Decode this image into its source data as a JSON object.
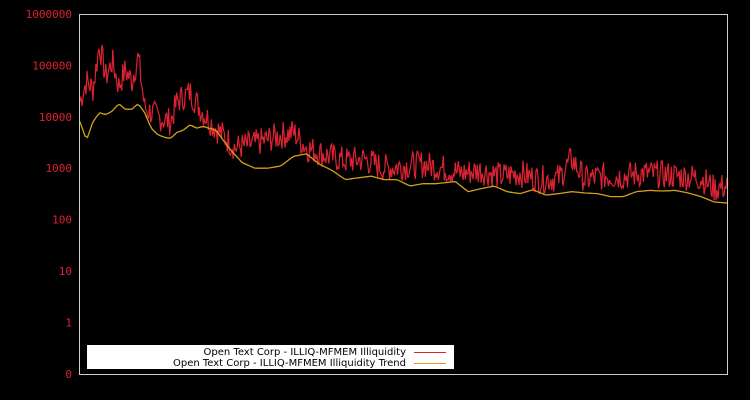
{
  "chart_data": {
    "type": "line",
    "title": "",
    "xlabel": "",
    "ylabel": "",
    "yscale": "log",
    "ylim": [
      0,
      1000000
    ],
    "y_ticks": [
      "1000000",
      "100000",
      "10000",
      "1000",
      "100",
      "10",
      "1",
      "0"
    ],
    "x_ticks": [],
    "grid": false,
    "legend_position": "bottom-left inside",
    "colors": {
      "illiquidity": "#dd2233",
      "trend": "#d4a017",
      "axis": "#cccccc",
      "tick_text": "#dd2233",
      "background": "#000000"
    },
    "series": [
      {
        "name": "Open Text Corp - ILLIQ-MFMEM Illiquidity",
        "approx_values_by_x_fraction": [
          [
            0.0,
            20000
          ],
          [
            0.01,
            50000
          ],
          [
            0.02,
            35000
          ],
          [
            0.03,
            250000
          ],
          [
            0.04,
            60000
          ],
          [
            0.05,
            120000
          ],
          [
            0.06,
            40000
          ],
          [
            0.07,
            80000
          ],
          [
            0.08,
            50000
          ],
          [
            0.09,
            150000
          ],
          [
            0.1,
            15000
          ],
          [
            0.12,
            10000
          ],
          [
            0.14,
            8000
          ],
          [
            0.15,
            20000
          ],
          [
            0.17,
            30000
          ],
          [
            0.19,
            12000
          ],
          [
            0.21,
            6000
          ],
          [
            0.24,
            2500
          ],
          [
            0.27,
            3000
          ],
          [
            0.3,
            4000
          ],
          [
            0.33,
            5000
          ],
          [
            0.35,
            2500
          ],
          [
            0.38,
            1800
          ],
          [
            0.41,
            1400
          ],
          [
            0.44,
            1500
          ],
          [
            0.47,
            1000
          ],
          [
            0.5,
            1100
          ],
          [
            0.53,
            1200
          ],
          [
            0.56,
            1000
          ],
          [
            0.59,
            800
          ],
          [
            0.62,
            900
          ],
          [
            0.65,
            700
          ],
          [
            0.68,
            800
          ],
          [
            0.71,
            600
          ],
          [
            0.74,
            650
          ],
          [
            0.76,
            1500
          ],
          [
            0.78,
            600
          ],
          [
            0.81,
            700
          ],
          [
            0.84,
            700
          ],
          [
            0.87,
            800
          ],
          [
            0.9,
            750
          ],
          [
            0.93,
            700
          ],
          [
            0.96,
            650
          ],
          [
            0.98,
            400
          ],
          [
            1.0,
            450
          ]
        ]
      },
      {
        "name": "Open Text Corp - ILLIQ-MFMEM Illiquidity Trend",
        "approx_values_by_x_fraction": [
          [
            0.0,
            8000
          ],
          [
            0.01,
            3500
          ],
          [
            0.02,
            8000
          ],
          [
            0.03,
            12000
          ],
          [
            0.04,
            11000
          ],
          [
            0.05,
            13000
          ],
          [
            0.06,
            18000
          ],
          [
            0.07,
            14000
          ],
          [
            0.08,
            14000
          ],
          [
            0.09,
            18000
          ],
          [
            0.1,
            12000
          ],
          [
            0.11,
            6000
          ],
          [
            0.12,
            4500
          ],
          [
            0.13,
            4000
          ],
          [
            0.14,
            3800
          ],
          [
            0.15,
            5000
          ],
          [
            0.16,
            5500
          ],
          [
            0.17,
            7000
          ],
          [
            0.18,
            6000
          ],
          [
            0.19,
            6500
          ],
          [
            0.21,
            5500
          ],
          [
            0.23,
            2500
          ],
          [
            0.25,
            1300
          ],
          [
            0.27,
            1000
          ],
          [
            0.29,
            1000
          ],
          [
            0.31,
            1100
          ],
          [
            0.33,
            1700
          ],
          [
            0.35,
            1900
          ],
          [
            0.37,
            1200
          ],
          [
            0.39,
            900
          ],
          [
            0.41,
            600
          ],
          [
            0.43,
            650
          ],
          [
            0.45,
            700
          ],
          [
            0.47,
            600
          ],
          [
            0.49,
            600
          ],
          [
            0.51,
            450
          ],
          [
            0.53,
            500
          ],
          [
            0.55,
            500
          ],
          [
            0.58,
            550
          ],
          [
            0.6,
            350
          ],
          [
            0.62,
            400
          ],
          [
            0.64,
            450
          ],
          [
            0.66,
            350
          ],
          [
            0.68,
            320
          ],
          [
            0.7,
            380
          ],
          [
            0.72,
            300
          ],
          [
            0.74,
            320
          ],
          [
            0.76,
            350
          ],
          [
            0.78,
            330
          ],
          [
            0.8,
            320
          ],
          [
            0.82,
            280
          ],
          [
            0.84,
            280
          ],
          [
            0.86,
            350
          ],
          [
            0.88,
            370
          ],
          [
            0.9,
            360
          ],
          [
            0.92,
            370
          ],
          [
            0.94,
            330
          ],
          [
            0.96,
            280
          ],
          [
            0.98,
            220
          ],
          [
            1.0,
            210
          ]
        ]
      }
    ]
  },
  "legend": {
    "items": [
      {
        "label": "Open Text Corp - ILLIQ-MFMEM Illiquidity",
        "color": "#dd2233"
      },
      {
        "label": "Open Text Corp - ILLIQ-MFMEM Illiquidity Trend",
        "color": "#d4a017"
      }
    ]
  }
}
